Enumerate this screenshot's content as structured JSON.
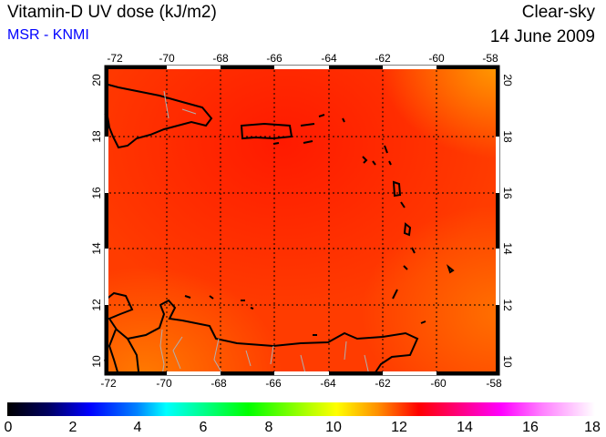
{
  "header": {
    "title": "Vitamin-D UV dose (kJ/m2)",
    "source": "MSR - KNMI",
    "mode": "Clear-sky",
    "date": "14 June 2009"
  },
  "map": {
    "lon_ticks": [
      "-72",
      "-70",
      "-68",
      "-66",
      "-64",
      "-62",
      "-60",
      "-58"
    ],
    "lat_ticks": [
      "20",
      "18",
      "16",
      "14",
      "12",
      "10"
    ],
    "lon_range": [
      -72.3,
      -57.7
    ],
    "lat_range": [
      9.5,
      20.5
    ]
  },
  "colorbar": {
    "labels": [
      "0",
      "2",
      "4",
      "6",
      "8",
      "10",
      "12",
      "14",
      "16",
      "18"
    ],
    "min": 0,
    "max": 18,
    "units": "kJ/m2"
  }
}
